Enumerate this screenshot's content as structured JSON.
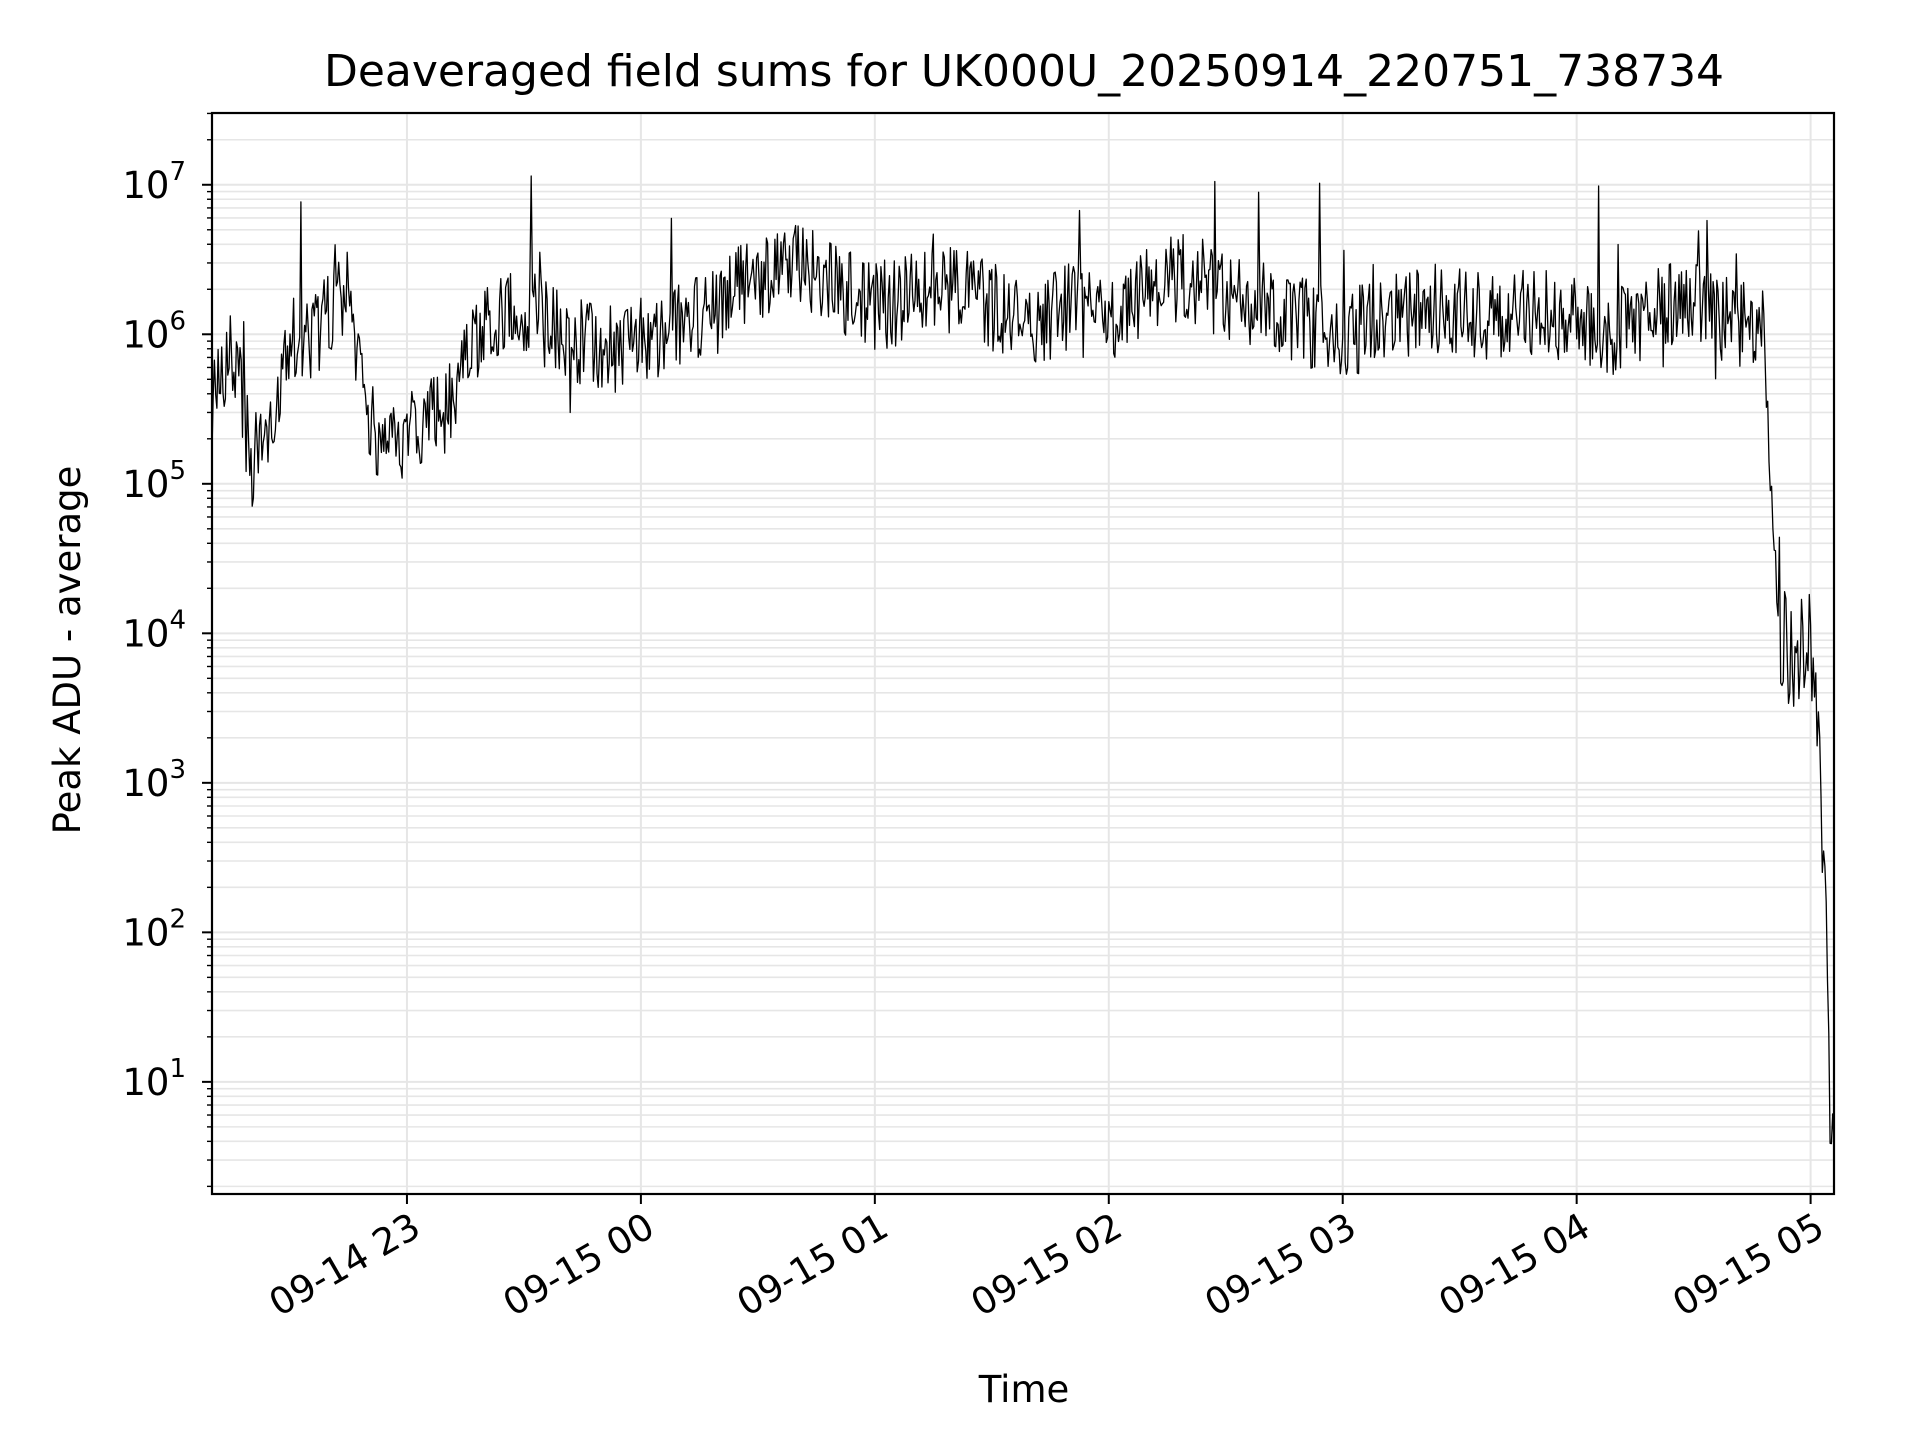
{
  "chart_data": {
    "type": "line",
    "title": "Deaveraged field sums for UK000U_20250914_220751_738734",
    "xlabel": "Time",
    "ylabel": "Peak ADU - average",
    "yscale": "log",
    "grid": true,
    "legend": "none",
    "xlim": [
      "2025-09-14 22:10",
      "2025-09-15 05:06"
    ],
    "ylim_log10": [
      0.25,
      7.48
    ],
    "x_ticks": [
      {
        "time": "2025-09-14 23:00",
        "label": "09-14 23"
      },
      {
        "time": "2025-09-15 00:00",
        "label": "09-15 00"
      },
      {
        "time": "2025-09-15 01:00",
        "label": "09-15 01"
      },
      {
        "time": "2025-09-15 02:00",
        "label": "09-15 02"
      },
      {
        "time": "2025-09-15 03:00",
        "label": "09-15 03"
      },
      {
        "time": "2025-09-15 04:00",
        "label": "09-15 04"
      },
      {
        "time": "2025-09-15 05:00",
        "label": "09-15 05"
      }
    ],
    "y_ticks": [
      {
        "base": "10",
        "exp": "1"
      },
      {
        "base": "10",
        "exp": "2"
      },
      {
        "base": "10",
        "exp": "3"
      },
      {
        "base": "10",
        "exp": "4"
      },
      {
        "base": "10",
        "exp": "5"
      },
      {
        "base": "10",
        "exp": "6"
      },
      {
        "base": "10",
        "exp": "7"
      }
    ],
    "series_color": "#000000",
    "grid_color": "#e6e6e6",
    "series": [
      {
        "x": [
          "2025-09-14 22:10",
          "2025-09-14 22:15",
          "2025-09-14 22:20",
          "2025-09-14 22:25",
          "2025-09-14 22:30",
          "2025-09-14 22:35",
          "2025-09-14 22:40",
          "2025-09-14 22:45",
          "2025-09-14 22:50",
          "2025-09-14 22:55",
          "2025-09-14 23:00",
          "2025-09-14 23:05",
          "2025-09-14 23:10",
          "2025-09-14 23:15",
          "2025-09-14 23:20",
          "2025-09-14 23:30",
          "2025-09-14 23:40",
          "2025-09-14 23:50",
          "2025-09-15 00:00",
          "2025-09-15 00:10",
          "2025-09-15 00:20",
          "2025-09-15 00:30",
          "2025-09-15 00:40",
          "2025-09-15 00:50",
          "2025-09-15 01:00",
          "2025-09-15 01:10",
          "2025-09-15 01:20",
          "2025-09-15 01:30",
          "2025-09-15 01:40",
          "2025-09-15 01:50",
          "2025-09-15 02:00",
          "2025-09-15 02:10",
          "2025-09-15 02:20",
          "2025-09-15 02:30",
          "2025-09-15 02:40",
          "2025-09-15 02:50",
          "2025-09-15 03:00",
          "2025-09-15 03:10",
          "2025-09-15 03:20",
          "2025-09-15 03:30",
          "2025-09-15 03:40",
          "2025-09-15 03:50",
          "2025-09-15 04:00",
          "2025-09-15 04:10",
          "2025-09-15 04:20",
          "2025-09-15 04:30",
          "2025-09-15 04:40",
          "2025-09-15 04:45",
          "2025-09-15 04:48",
          "2025-09-15 04:50",
          "2025-09-15 04:52",
          "2025-09-15 04:54",
          "2025-09-15 04:56",
          "2025-09-15 04:58",
          "2025-09-15 05:00",
          "2025-09-15 05:01",
          "2025-09-15 05:02",
          "2025-09-15 05:03",
          "2025-09-15 05:04",
          "2025-09-15 05:05",
          "2025-09-15 05:06"
        ],
        "y": [
          300000,
          900000,
          150000,
          200000,
          1000000,
          800000,
          1500000,
          2000000,
          300000,
          150000,
          200000,
          250000,
          300000,
          800000,
          1200000,
          1500000,
          1000000,
          800000,
          900000,
          1200000,
          1500000,
          2500000,
          3000000,
          2000000,
          1500000,
          1800000,
          2000000,
          1500000,
          1200000,
          1500000,
          1200000,
          2000000,
          2500000,
          1800000,
          1500000,
          1200000,
          1000000,
          1200000,
          1500000,
          1500000,
          1200000,
          1500000,
          1200000,
          1000000,
          1500000,
          1500000,
          1200000,
          1200000,
          1000000,
          80000,
          10000,
          8000,
          5000,
          10000,
          8000,
          5000,
          3000,
          400,
          150,
          5,
          4
        ]
      }
    ]
  }
}
